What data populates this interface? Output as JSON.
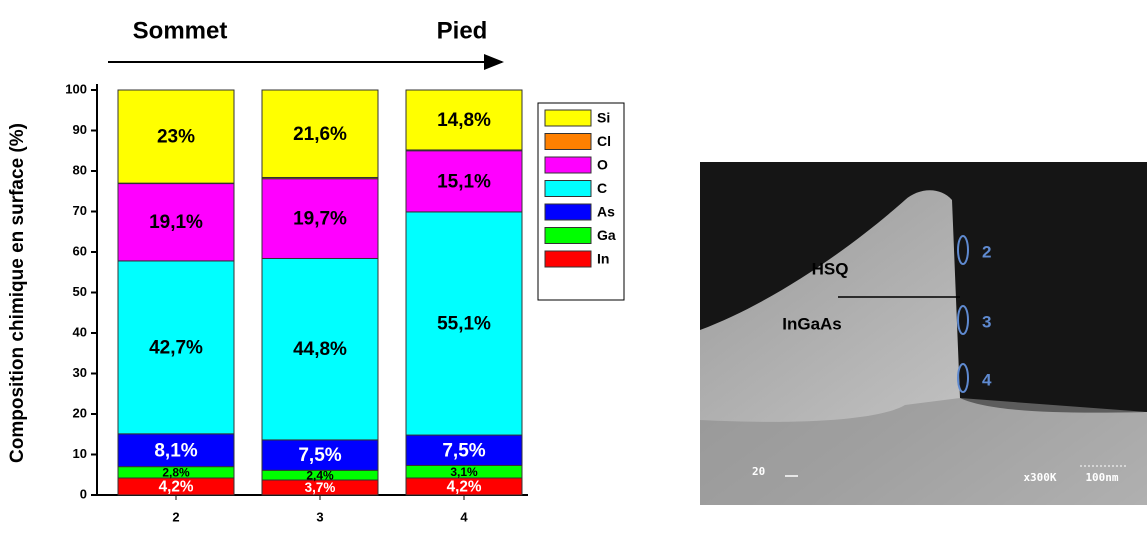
{
  "chart_data": {
    "type": "stacked_bar",
    "y_label": "Composition chimique en surface (%)",
    "annotations": [
      "Sommet",
      "Pied"
    ],
    "categories": [
      "2",
      "3",
      "4"
    ],
    "series": [
      {
        "name": "In",
        "color": "#ff0000",
        "label_color": "#ffffff",
        "values": [
          4.2,
          3.7,
          4.2
        ],
        "value_labels": [
          "4,2%",
          "3,7%",
          "4,2%"
        ]
      },
      {
        "name": "Ga",
        "color": "#00ff00",
        "label_color": "#000000",
        "values": [
          2.8,
          2.4,
          3.1
        ],
        "value_labels": [
          "2,8%",
          "2,4%",
          "3,1%"
        ]
      },
      {
        "name": "As",
        "color": "#0000ff",
        "label_color": "#ffffff",
        "values": [
          8.1,
          7.5,
          7.5
        ],
        "value_labels": [
          "8,1%",
          "7,5%",
          "7,5%"
        ]
      },
      {
        "name": "C",
        "color": "#00ffff",
        "label_color": "#000000",
        "values": [
          42.7,
          44.8,
          55.1
        ],
        "value_labels": [
          "42,7%",
          "44,8%",
          "55,1%"
        ]
      },
      {
        "name": "O",
        "color": "#ff00ff",
        "label_color": "#000000",
        "values": [
          19.1,
          19.7,
          15.1
        ],
        "value_labels": [
          "19,1%",
          "19,7%",
          "15,1%"
        ]
      },
      {
        "name": "Cl",
        "color": "#ff8000",
        "label_color": "#000000",
        "values": [
          0.1,
          0.3,
          0.2
        ]
      },
      {
        "name": "Si",
        "color": "#ffff00",
        "label_color": "#000000",
        "values": [
          23,
          21.6,
          14.8
        ],
        "value_labels": [
          "23%",
          "21,6%",
          "14,8%"
        ]
      }
    ],
    "ylim": [
      0,
      100
    ],
    "yticks": [
      0,
      10,
      20,
      30,
      40,
      50,
      60,
      70,
      80,
      90,
      100
    ]
  },
  "sem_image": {
    "layers": [
      "HSQ",
      "InGaAs"
    ],
    "positions": [
      "2",
      "3",
      "4"
    ],
    "scale_left": "20",
    "magnification": "x300K",
    "scale_bar": "100nm"
  }
}
